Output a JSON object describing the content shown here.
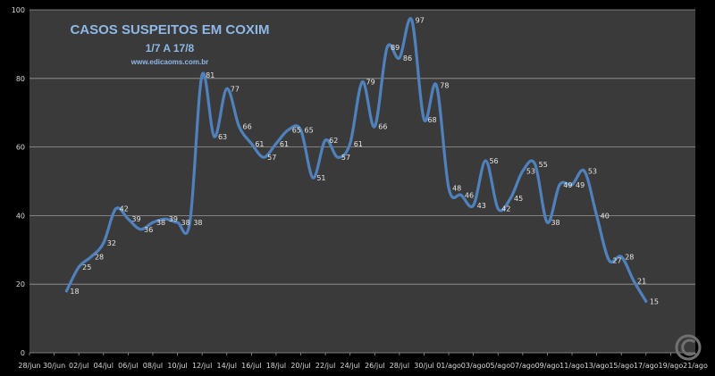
{
  "colors": {
    "background": "#000000",
    "plot_area": "#3a3a3a",
    "gridline": "#9a9a9a",
    "series": "#4f81bd",
    "title": "#8fb8e6"
  },
  "chart_data": {
    "type": "line",
    "title": "CASOS SUSPEITOS EM COXIM",
    "subtitle": "1/7 A 17/8",
    "source": "www.edicaoms.com.br",
    "ylim": [
      0,
      100
    ],
    "yticks": [
      0,
      20,
      40,
      60,
      80,
      100
    ],
    "grid": true,
    "x_tick_labels": [
      "28/jun",
      "30/jun",
      "02/jul",
      "04/jul",
      "06/jul",
      "08/jul",
      "10/jul",
      "12/jul",
      "14/jul",
      "16/jul",
      "18/jul",
      "20/jul",
      "22/jul",
      "24/jul",
      "26/jul",
      "28/jul",
      "30/jul",
      "01/ago",
      "03/ago",
      "05/ago",
      "07/ago",
      "09/ago",
      "11/ago",
      "13/ago",
      "15/ago",
      "17/ago",
      "19/ago",
      "21/ago"
    ],
    "series": [
      {
        "name": "Casos suspeitos",
        "start_label": "01/jul",
        "values": [
          18,
          25,
          28,
          32,
          42,
          39,
          36,
          38,
          39,
          38,
          38,
          81,
          63,
          77,
          66,
          61,
          57,
          61,
          65,
          65,
          51,
          62,
          57,
          61,
          79,
          66,
          89,
          86,
          97,
          68,
          78,
          48,
          46,
          43,
          56,
          42,
          45,
          53,
          55,
          38,
          49,
          49,
          53,
          40,
          27,
          28,
          21,
          15
        ]
      }
    ]
  }
}
